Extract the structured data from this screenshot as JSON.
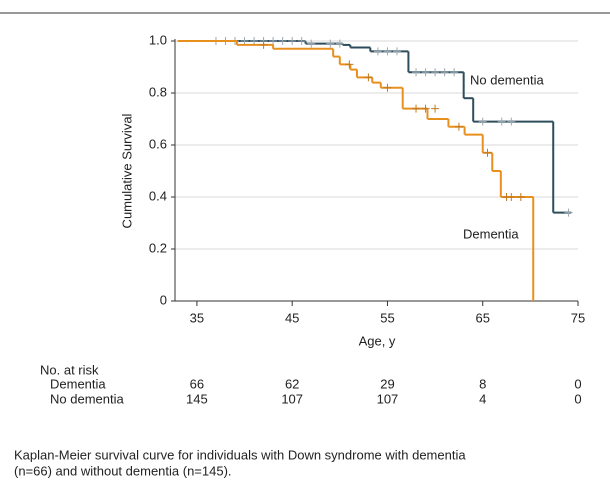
{
  "chart_data": {
    "type": "step",
    "xlabel": "Age, y",
    "ylabel": "Cumulative Survival",
    "xlim": [
      32.7,
      75
    ],
    "ylim": [
      0,
      1
    ],
    "xticks": [
      35,
      45,
      55,
      65,
      75
    ],
    "yticks": [
      0,
      0.2,
      0.4,
      0.6,
      0.8,
      {
        "value": 1,
        "label": "1.0"
      }
    ],
    "grid": true,
    "series": [
      {
        "name": "No dementia",
        "color": "#2e4d5c",
        "x": [
          33,
          46.4,
          50.3,
          51.1,
          53.2,
          57.2,
          63,
          64,
          72.4,
          74.3
        ],
        "values": [
          1,
          0.99,
          0.985,
          0.975,
          0.96,
          0.88,
          0.78,
          0.69,
          0.34,
          0.34
        ],
        "censored_x": [
          37,
          38,
          39,
          40,
          41,
          42,
          43,
          44,
          45,
          46,
          47,
          49,
          50,
          54,
          55,
          56,
          58,
          59,
          60,
          61,
          62,
          65,
          67,
          68,
          74
        ],
        "censored_values": [
          1,
          1,
          1,
          1,
          1,
          1,
          1,
          1,
          1,
          1,
          0.99,
          0.99,
          0.99,
          0.96,
          0.96,
          0.96,
          0.88,
          0.88,
          0.88,
          0.88,
          0.88,
          0.69,
          0.69,
          0.69,
          0.34
        ]
      },
      {
        "name": "Dementia",
        "color": "#e8901e",
        "x": [
          33,
          39.2,
          43,
          49.3,
          50,
          51.1,
          51.8,
          53.4,
          54.3,
          56.6,
          59.2,
          61.4,
          63.1,
          65,
          66,
          66.9,
          70.3
        ],
        "values": [
          1,
          0.985,
          0.97,
          0.94,
          0.91,
          0.89,
          0.86,
          0.84,
          0.82,
          0.74,
          0.7,
          0.67,
          0.64,
          0.57,
          0.5,
          0.4,
          0
        ],
        "censored_x": [
          42,
          51,
          53,
          55,
          58,
          59,
          60,
          62.5,
          65.5,
          67.5,
          68,
          69
        ],
        "censored_values": [
          0.985,
          0.91,
          0.86,
          0.82,
          0.74,
          0.74,
          0.74,
          0.67,
          0.57,
          0.4,
          0.4,
          0.4
        ]
      }
    ],
    "risk_table": {
      "title": "No. at risk",
      "rows": [
        {
          "label": "Dementia",
          "counts": [
            66,
            62,
            29,
            8,
            0
          ]
        },
        {
          "label": "No dementia",
          "counts": [
            145,
            107,
            107,
            4,
            0
          ]
        }
      ]
    },
    "caption": [
      "Kaplan-Meier survival curve for individuals with Down syndrome with dementia",
      "(n=66) and without dementia (n=145)."
    ]
  }
}
